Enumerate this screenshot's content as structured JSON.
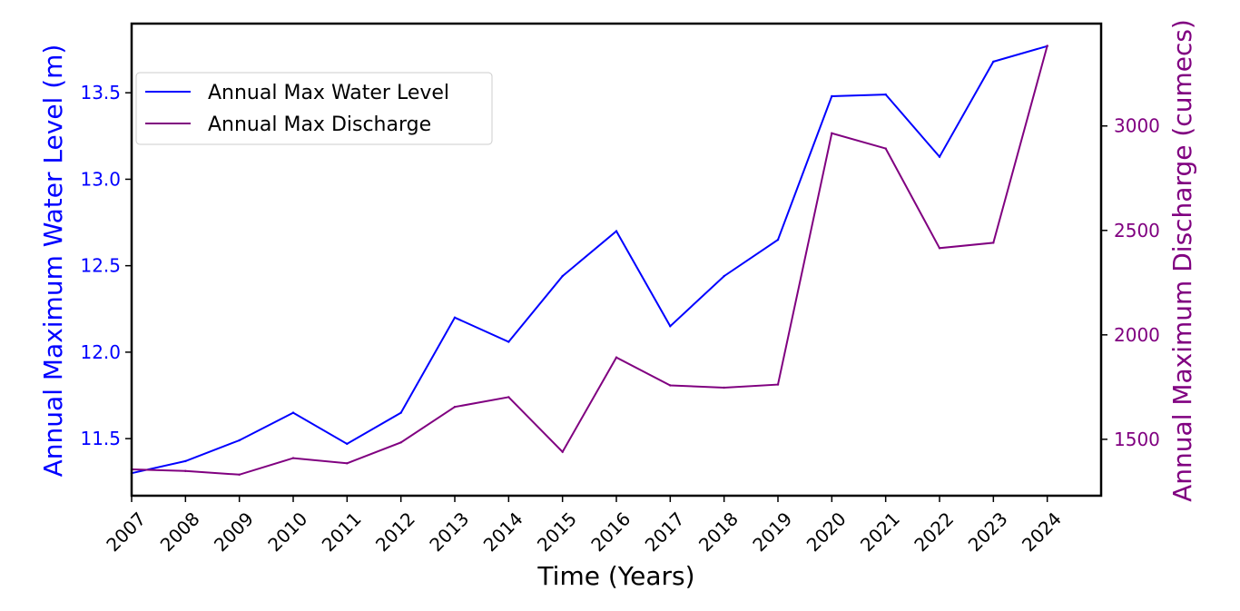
{
  "chart_data": {
    "type": "line",
    "x": [
      2007,
      2008,
      2009,
      2010,
      2011,
      2012,
      2013,
      2014,
      2015,
      2016,
      2017,
      2018,
      2019,
      2020,
      2021,
      2022,
      2023,
      2024
    ],
    "categories": [
      "2007",
      "2008",
      "2009",
      "2010",
      "2011",
      "2012",
      "2013",
      "2014",
      "2015",
      "2016",
      "2017",
      "2018",
      "2019",
      "2020",
      "2021",
      "2022",
      "2023",
      "2024"
    ],
    "xlabel": "Time (Years)",
    "ylabel_left": "Annual Maximum Water Level (m)",
    "ylabel_right": "Annual Maximum Discharge (cumecs)",
    "ylim_left": [
      11.17,
      13.9
    ],
    "ylim_right": [
      1230,
      3490
    ],
    "yticks_left": [
      "11.5",
      "12.0",
      "12.5",
      "13.0",
      "13.5"
    ],
    "yticks_right": [
      "1500",
      "2000",
      "2500",
      "3000"
    ],
    "grid": false,
    "legend_position": "upper-left",
    "series": [
      {
        "name": "Annual Max Water Level",
        "axis": "left",
        "color": "#0000ff",
        "values": [
          11.3,
          11.37,
          11.49,
          11.65,
          11.47,
          11.65,
          12.2,
          12.06,
          12.44,
          12.7,
          12.15,
          12.44,
          12.65,
          13.48,
          13.49,
          13.13,
          13.68,
          13.77
        ]
      },
      {
        "name": "Annual Max Discharge",
        "axis": "right",
        "color": "#800080",
        "values": [
          1356,
          1348,
          1331,
          1410,
          1385,
          1485,
          1655,
          1702,
          1440,
          1892,
          1758,
          1747,
          1762,
          2965,
          2892,
          2415,
          2441,
          3384
        ]
      }
    ]
  },
  "colors": {
    "left_axis": "#0000ff",
    "right_axis": "#800080",
    "frame": "#000000"
  }
}
